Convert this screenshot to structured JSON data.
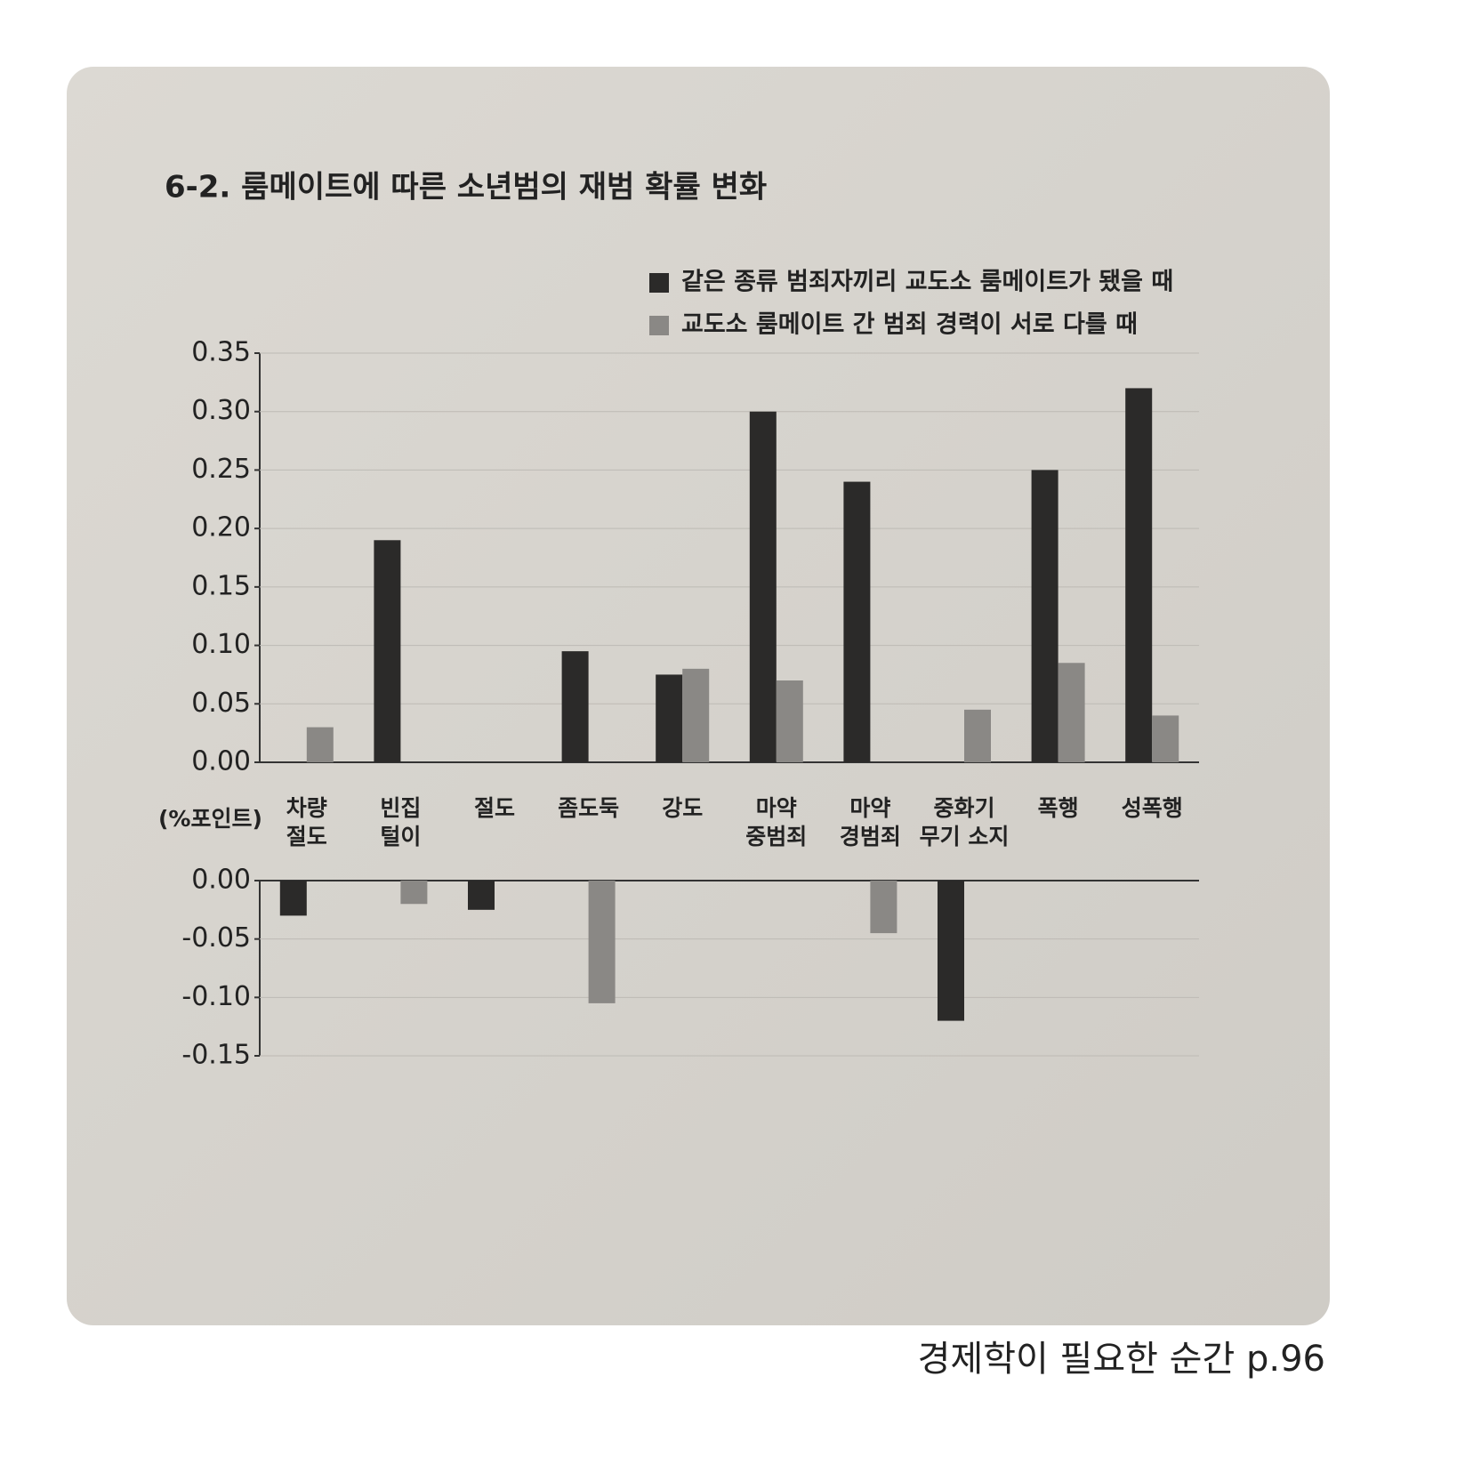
{
  "chart_data": {
    "type": "bar",
    "title": "6-2. 룸메이트에 따른 소년범의 재범 확률 변화",
    "y_label": "(%포인트)",
    "categories": [
      "차량 절도",
      "빈집 털이",
      "절도",
      "좀도둑",
      "강도",
      "마약 중범죄",
      "마약 경범죄",
      "중화기 무기 소지",
      "폭행",
      "성폭행"
    ],
    "series": [
      {
        "name": "같은 종류 범죄자끼리 교도소 룸메이트가 됐을 때",
        "color": "#2b2a29",
        "values": [
          -0.03,
          0.19,
          -0.025,
          0.095,
          0.075,
          0.3,
          0.24,
          -0.12,
          0.25,
          0.32
        ]
      },
      {
        "name": "교도소 룸메이트 간 범죄 경력이 서로 다를 때",
        "color": "#8a8885",
        "values": [
          0.03,
          -0.02,
          null,
          -0.105,
          0.08,
          0.07,
          -0.045,
          0.045,
          0.085,
          0.04
        ]
      }
    ],
    "panels": [
      {
        "ylim": [
          0,
          0.35
        ],
        "yticks": [
          {
            "value": 0,
            "label": "0.00"
          },
          {
            "value": 0.05,
            "label": "0.05"
          },
          {
            "value": 0.1,
            "label": "0.10"
          },
          {
            "value": 0.15,
            "label": "0.15"
          },
          {
            "value": 0.2,
            "label": "0.20"
          },
          {
            "value": 0.25,
            "label": "0.25"
          },
          {
            "value": 0.3,
            "label": "0.30"
          },
          {
            "value": 0.35,
            "label": "0.35"
          }
        ]
      },
      {
        "ylim": [
          -0.15,
          0
        ],
        "yticks": [
          {
            "value": 0,
            "label": "0.00"
          },
          {
            "value": -0.05,
            "label": "-0.05"
          },
          {
            "value": -0.1,
            "label": "-0.10"
          },
          {
            "value": -0.15,
            "label": "-0.15"
          }
        ]
      }
    ],
    "grid": true,
    "caption": "경제학이 필요한 순간 p.96"
  }
}
